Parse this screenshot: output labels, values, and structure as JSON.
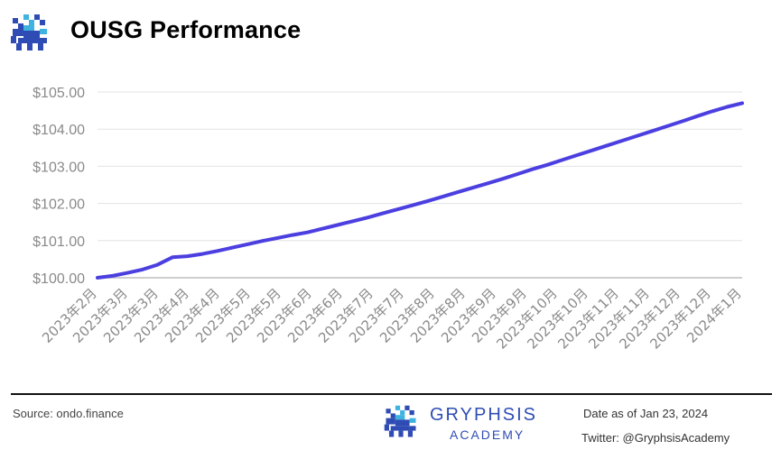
{
  "header": {
    "logo_icon": "gryphon-icon",
    "title": "OUSG Performance"
  },
  "chart_data": {
    "type": "line",
    "title": "OUSG Performance",
    "xlabel": "",
    "ylabel": "",
    "ylim": [
      100.0,
      105.0
    ],
    "yticks": [
      "$100.00",
      "$101.00",
      "$102.00",
      "$103.00",
      "$104.00",
      "$105.00"
    ],
    "grid": true,
    "legend": "none",
    "line_color": "#4b3fe0",
    "x_tick_labels": [
      "2023年2月",
      "2023年3月",
      "2023年3月",
      "2023年4月",
      "2023年4月",
      "2023年5月",
      "2023年5月",
      "2023年6月",
      "2023年6月",
      "2023年7月",
      "2023年7月",
      "2023年8月",
      "2023年8月",
      "2023年9月",
      "2023年9月",
      "2023年10月",
      "2023年10月",
      "2023年11月",
      "2023年11月",
      "2023年12月",
      "2023年12月",
      "2024年1月"
    ],
    "series": [
      {
        "values": [
          100.0,
          100.05,
          100.13,
          100.22,
          100.35,
          100.55,
          100.58,
          100.64,
          100.72,
          100.81,
          100.9,
          100.99,
          101.07,
          101.15,
          101.22,
          101.32,
          101.42,
          101.52,
          101.62,
          101.73,
          101.84,
          101.95,
          102.06,
          102.18,
          102.3,
          102.42,
          102.54,
          102.66,
          102.79,
          102.92,
          103.04,
          103.17,
          103.3,
          103.43,
          103.56,
          103.69,
          103.82,
          103.95,
          104.08,
          104.21,
          104.35,
          104.48,
          104.6,
          104.7
        ]
      }
    ]
  },
  "footer": {
    "source": "Source: ondo.finance",
    "brand_icon": "gryphon-icon",
    "brand_name": "GRYPHSIS",
    "brand_sub": "ACADEMY",
    "date_note": "Date as of Jan 23, 2024",
    "twitter": "Twitter: @GryphsisAcademy"
  }
}
